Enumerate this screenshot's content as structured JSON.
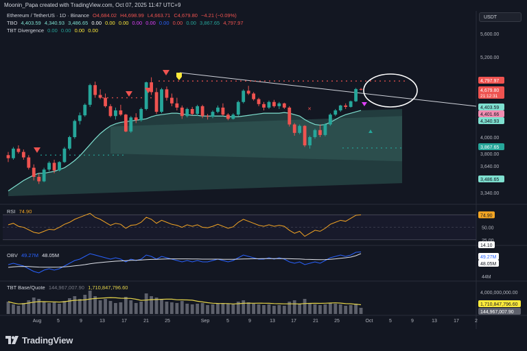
{
  "header": {
    "caption": "Moonin_Papa created with TradingView.com, Oct 07, 2025 11:47 UTC+9"
  },
  "legend": {
    "symbol": "Ethereum / TetherUS · 1D · Binance",
    "o": "O4,684.02",
    "h": "H4,698.99",
    "l": "L4,663.71",
    "c": "C4,679.80",
    "chg": "−4.21 (−0.09%)",
    "tbo_label": "TBO",
    "tbo_values": [
      "4,403.59",
      "4,340.93",
      "3,486.65",
      "0.00",
      "0.00",
      "0.00",
      "0.00",
      "0.00",
      "0.00",
      "0.00",
      "0.00",
      "3,867.65",
      "4,797.97"
    ],
    "div_label": "TBT Divergence",
    "div_values": [
      "0.00",
      "0.00",
      "0.00",
      "0.00"
    ],
    "rsi_label": "RSI",
    "rsi_value": "74.90",
    "obv_label": "OBV",
    "obv_values": [
      "49.27M",
      "48.05M"
    ],
    "vol_label": "TBT Base/Quote",
    "vol_values": [
      "144,967,007.90",
      "1,710,847,796.60"
    ]
  },
  "toolbar": {
    "currency": "USDT"
  },
  "footer": {
    "brand": "TradingView"
  },
  "colors": {
    "background": "#131722",
    "up": "#26a69a",
    "down": "#ef5350",
    "cloud_line": "#7fe0d0",
    "rsi": "#f5a623",
    "obv": "#2962ff",
    "obv_ma": "#e0e3eb",
    "vol_ma": "#e6d54a"
  },
  "chart_data": {
    "type": "candlestick",
    "x_ticks": [
      "Aug",
      "5",
      "9",
      "13",
      "17",
      "21",
      "25",
      "Sep",
      "5",
      "9",
      "13",
      "17",
      "21",
      "25",
      "Oct",
      "5",
      "9",
      "13",
      "17",
      "2"
    ],
    "y_ticks": [
      "5,600.00",
      "5,200.00",
      "4,800.00",
      "4,400.00",
      "4,000.00",
      "3,800.00",
      "3,640.00",
      "3,490.00",
      "3,340.00"
    ],
    "price_tags": [
      {
        "label": "4,797.97",
        "value": 4797.97,
        "color": "#ef5350"
      },
      {
        "label": "4,679.80",
        "value": 4679.8,
        "color": "#ef5350",
        "sub": "21:12:31"
      },
      {
        "label": "4,403.59",
        "value": 4403.59,
        "color": "#7fe0d0"
      },
      {
        "label": "4,401.66",
        "value": 4401.66,
        "color": "#f28cb1"
      },
      {
        "label": "4,340.93",
        "value": 4340.93,
        "color": "#7fe0d0"
      },
      {
        "label": "3,867.65",
        "value": 3867.65,
        "color": "#26a69a"
      },
      {
        "label": "3,486.65",
        "value": 3486.65,
        "color": "#7fe0d0"
      }
    ],
    "candles": [
      [
        3780,
        3820,
        3690,
        3740
      ],
      [
        3740,
        3880,
        3720,
        3860
      ],
      [
        3860,
        3900,
        3800,
        3820
      ],
      [
        3820,
        3850,
        3720,
        3750
      ],
      [
        3750,
        3780,
        3600,
        3620
      ],
      [
        3620,
        3660,
        3480,
        3520
      ],
      [
        3520,
        3560,
        3440,
        3470
      ],
      [
        3470,
        3620,
        3460,
        3600
      ],
      [
        3600,
        3700,
        3580,
        3680
      ],
      [
        3680,
        3720,
        3560,
        3590
      ],
      [
        3590,
        3700,
        3580,
        3690
      ],
      [
        3690,
        3880,
        3680,
        3860
      ],
      [
        3860,
        4020,
        3840,
        4000
      ],
      [
        4000,
        4250,
        3980,
        4230
      ],
      [
        4230,
        4350,
        4180,
        4310
      ],
      [
        4310,
        4480,
        4290,
        4460
      ],
      [
        4460,
        4760,
        4430,
        4740
      ],
      [
        4740,
        4790,
        4560,
        4600
      ],
      [
        4600,
        4680,
        4540,
        4560
      ],
      [
        4560,
        4620,
        4420,
        4440
      ],
      [
        4440,
        4470,
        4280,
        4300
      ],
      [
        4300,
        4420,
        4250,
        4380
      ],
      [
        4380,
        4460,
        4300,
        4320
      ],
      [
        4320,
        4330,
        4070,
        4080
      ],
      [
        4080,
        4300,
        4060,
        4280
      ],
      [
        4280,
        4340,
        4200,
        4240
      ],
      [
        4240,
        4420,
        4220,
        4400
      ],
      [
        4400,
        4790,
        4380,
        4780
      ],
      [
        4780,
        4860,
        4600,
        4640
      ],
      [
        4640,
        4700,
        4330,
        4360
      ],
      [
        4360,
        4700,
        4340,
        4680
      ],
      [
        4680,
        4720,
        4520,
        4560
      ],
      [
        4560,
        4620,
        4440,
        4480
      ],
      [
        4480,
        4560,
        4380,
        4420
      ],
      [
        4420,
        4450,
        4260,
        4300
      ],
      [
        4300,
        4420,
        4280,
        4400
      ],
      [
        4400,
        4430,
        4310,
        4330
      ],
      [
        4330,
        4460,
        4300,
        4440
      ],
      [
        4440,
        4460,
        4270,
        4300
      ],
      [
        4300,
        4330,
        4250,
        4290
      ],
      [
        4290,
        4380,
        4270,
        4360
      ],
      [
        4360,
        4450,
        4340,
        4420
      ],
      [
        4420,
        4480,
        4300,
        4320
      ],
      [
        4320,
        4340,
        4240,
        4260
      ],
      [
        4260,
        4340,
        4250,
        4320
      ],
      [
        4320,
        4520,
        4300,
        4500
      ],
      [
        4500,
        4680,
        4480,
        4660
      ],
      [
        4660,
        4730,
        4600,
        4620
      ],
      [
        4620,
        4640,
        4520,
        4540
      ],
      [
        4540,
        4560,
        4440,
        4470
      ],
      [
        4470,
        4500,
        4380,
        4420
      ],
      [
        4420,
        4520,
        4400,
        4500
      ],
      [
        4500,
        4530,
        4420,
        4440
      ],
      [
        4440,
        4500,
        4400,
        4480
      ],
      [
        4480,
        4490,
        4400,
        4420
      ],
      [
        4420,
        4440,
        4150,
        4180
      ],
      [
        4180,
        4200,
        4020,
        4060
      ],
      [
        4060,
        4180,
        4040,
        4160
      ],
      [
        4160,
        4170,
        3880,
        3900
      ],
      [
        3900,
        4020,
        3860,
        4000
      ],
      [
        4000,
        4120,
        3980,
        4100
      ],
      [
        4100,
        4180,
        4000,
        4030
      ],
      [
        4030,
        4200,
        4010,
        4180
      ],
      [
        4180,
        4340,
        4160,
        4320
      ],
      [
        4320,
        4400,
        4300,
        4380
      ],
      [
        4380,
        4460,
        4360,
        4450
      ],
      [
        4450,
        4480,
        4400,
        4430
      ],
      [
        4430,
        4520,
        4420,
        4510
      ],
      [
        4510,
        4700,
        4500,
        4684
      ],
      [
        4684,
        4698.99,
        4663.71,
        4679.8
      ]
    ],
    "cloud_upper_line": [
      3360,
      3400,
      3440,
      3480,
      3510,
      3540,
      3560,
      3560,
      3570,
      3580,
      3600,
      3620,
      3660,
      3710,
      3770,
      3840,
      3910,
      3980,
      4050,
      4110,
      4160,
      4190,
      4210,
      4220,
      4230,
      4240,
      4250,
      4260,
      4290,
      4310,
      4320,
      4330,
      4340,
      4340,
      4330,
      4320,
      4310,
      4310,
      4300,
      4300,
      4300,
      4300,
      4300,
      4290,
      4290,
      4290,
      4300,
      4310,
      4320,
      4330,
      4340,
      4340,
      4340,
      4340,
      4350,
      4340,
      4320,
      4300,
      4250,
      4210,
      4180,
      4170,
      4180,
      4210,
      4250,
      4290,
      4320,
      4340,
      4360,
      4380
    ],
    "rsi": [
      55,
      58,
      52,
      50,
      45,
      40,
      38,
      42,
      46,
      45,
      50,
      56,
      60,
      66,
      70,
      74,
      78,
      70,
      66,
      60,
      54,
      58,
      56,
      48,
      54,
      55,
      60,
      70,
      66,
      58,
      64,
      60,
      56,
      54,
      50,
      55,
      52,
      55,
      50,
      49,
      52,
      56,
      52,
      48,
      51,
      60,
      66,
      62,
      58,
      54,
      52,
      55,
      52,
      54,
      52,
      44,
      38,
      42,
      32,
      38,
      44,
      42,
      48,
      56,
      60,
      64,
      62,
      68,
      74,
      74.9
    ],
    "rsi_levels": [
      75,
      50,
      25
    ],
    "obv": [
      40,
      41,
      40,
      39,
      37,
      35,
      34,
      36,
      37,
      36,
      37,
      39,
      41,
      43,
      44,
      46,
      48,
      47,
      46,
      45,
      44,
      45,
      44,
      42,
      44,
      43,
      44,
      47,
      46,
      44,
      46,
      45,
      44,
      43,
      42,
      43,
      42,
      43,
      42,
      42,
      43,
      44,
      43,
      42,
      43,
      45,
      47,
      46,
      45,
      44,
      44,
      45,
      44,
      45,
      44,
      42,
      41,
      42,
      40,
      41,
      42,
      41,
      43,
      45,
      46,
      47,
      46,
      47,
      49,
      49.27
    ],
    "obv_ma": [
      38,
      38.4,
      38.6,
      38.7,
      38.6,
      38.4,
      38.2,
      38.1,
      38.1,
      38.1,
      38.2,
      38.4,
      38.7,
      39.1,
      39.5,
      40,
      40.6,
      41.1,
      41.5,
      41.9,
      42.2,
      42.5,
      42.7,
      42.9,
      43.1,
      43.2,
      43.4,
      43.6,
      43.8,
      43.9,
      44,
      44.1,
      44.2,
      44.2,
      44.2,
      44.2,
      44.1,
      44.1,
      44,
      44,
      44,
      44,
      43.9,
      43.9,
      43.9,
      44,
      44.1,
      44.2,
      44.3,
      44.3,
      44.4,
      44.4,
      44.4,
      44.4,
      44.4,
      44.3,
      44.2,
      44.1,
      43.9,
      43.8,
      43.7,
      43.6,
      43.7,
      43.9,
      44.2,
      44.6,
      45,
      45.5,
      46.5,
      48.05
    ],
    "volume": [
      1.8,
      1.4,
      1.2,
      1.6,
      2.0,
      2.4,
      2.2,
      1.8,
      1.6,
      1.7,
      1.5,
      1.9,
      2.3,
      2.6,
      2.2,
      2.8,
      3.4,
      2.6,
      2.0,
      2.2,
      1.9,
      1.6,
      1.7,
      2.5,
      2.0,
      1.6,
      1.8,
      3.0,
      2.6,
      2.4,
      2.2,
      1.8,
      1.7,
      1.6,
      1.9,
      1.5,
      1.4,
      1.5,
      1.6,
      1.3,
      1.4,
      1.5,
      1.6,
      1.5,
      1.4,
      1.8,
      2.0,
      1.7,
      1.5,
      1.4,
      1.3,
      1.4,
      1.2,
      1.3,
      1.2,
      1.8,
      2.0,
      1.5,
      2.2,
      1.6,
      1.4,
      1.3,
      1.4,
      1.6,
      1.5,
      1.4,
      1.2,
      1.3,
      1.5,
      0.9
    ]
  }
}
